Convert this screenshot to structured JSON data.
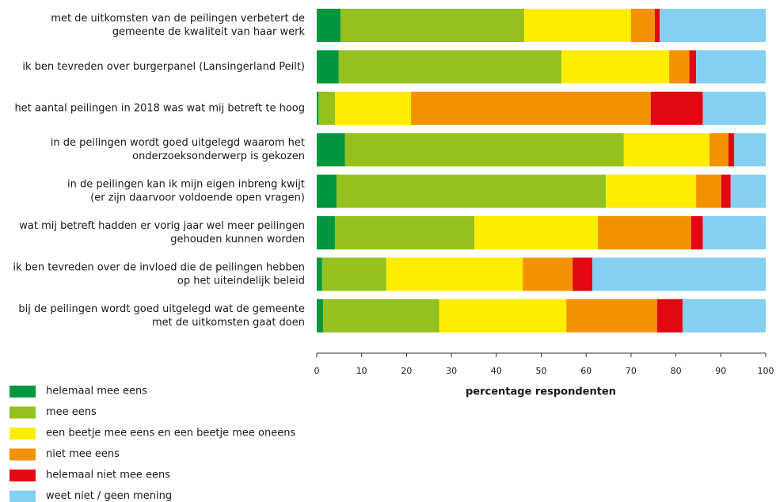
{
  "chart_data": {
    "type": "stacked-barh",
    "categories": [
      [
        "met de uitkomsten van de peilingen verbetert de",
        "gemeente de kwaliteit van haar werk"
      ],
      [
        "ik ben tevreden over burgerpanel (Lansingerland Peilt)"
      ],
      [
        "het aantal peilingen in 2018 was wat mij betreft te hoog"
      ],
      [
        "in de peilingen wordt goed uitgelegd waarom het",
        "onderzoeksonderwerp is gekozen"
      ],
      [
        "in de peilingen kan ik mijn eigen inbreng kwijt",
        "(er zijn daarvoor voldoende open vragen)"
      ],
      [
        "wat mij betreft hadden er vorig jaar wel meer peilingen",
        "gehouden kunnen worden"
      ],
      [
        "ik ben tevreden over de invloed die de peilingen hebben",
        "op het uiteindelijk beleid"
      ],
      [
        "bij de peilingen wordt goed uitgelegd wat de gemeente",
        "met de uitkomsten gaat doen"
      ]
    ],
    "series": [
      {
        "name": "helemaal mee eens",
        "color": "#00963f",
        "values": [
          5.3,
          4.9,
          0.4,
          6.3,
          4.4,
          4.1,
          1.2,
          1.4
        ]
      },
      {
        "name": "mee eens",
        "color": "#95c11f",
        "values": [
          40.9,
          49.6,
          3.7,
          62.1,
          60,
          31,
          14.3,
          25.9
        ]
      },
      {
        "name": "een beetje mee eens en een beetje mee oneens",
        "color": "#ffed00",
        "values": [
          23.8,
          24,
          16.9,
          19.1,
          20.1,
          27.5,
          30.4,
          28.3
        ]
      },
      {
        "name": "niet mee eens",
        "color": "#f39200",
        "values": [
          5.3,
          4.5,
          53.4,
          4.2,
          5.6,
          20.8,
          11.1,
          20.2
        ]
      },
      {
        "name": "helemaal niet mee eens",
        "color": "#e30613",
        "values": [
          1.1,
          1.5,
          11.6,
          1.3,
          2.1,
          2.6,
          4.4,
          5.7
        ]
      },
      {
        "name": "weet niet / geen mening",
        "color": "#85d0f0",
        "values": [
          23.6,
          15.5,
          14,
          7,
          7.8,
          14,
          38.6,
          18.5
        ]
      }
    ],
    "xlabel": "percentage respondenten",
    "xlim": [
      0,
      100
    ],
    "xticks": [
      0,
      10,
      20,
      30,
      40,
      50,
      60,
      70,
      80,
      90,
      100
    ],
    "legend": "bottom-left"
  }
}
